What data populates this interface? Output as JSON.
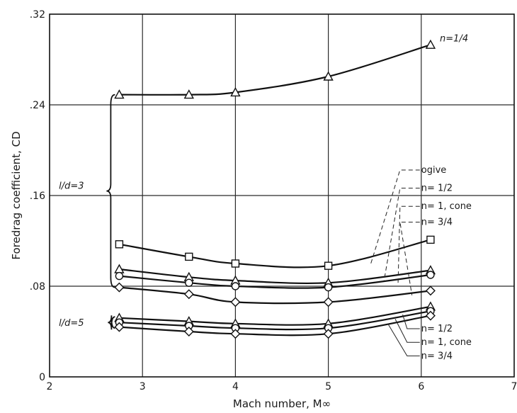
{
  "chart_data": {
    "type": "line",
    "xlabel": "Mach number, M∞",
    "ylabel": "Foredrag coefficient, CD",
    "xlim": [
      2,
      7
    ],
    "ylim": [
      0,
      0.32
    ],
    "x_ticks": [
      "2",
      "3",
      "4",
      "5",
      "6",
      "7"
    ],
    "y_ticks": [
      "0",
      ".08",
      ".16",
      ".24",
      ".32"
    ],
    "grid": true,
    "groups": [
      {
        "label": "l/d = 3"
      },
      {
        "label": "l/d = 5"
      }
    ],
    "series": [
      {
        "name": "n=1/4",
        "group": "l/d = 3",
        "marker": "triangle",
        "x": [
          2.75,
          3.5,
          4.0,
          5.0,
          6.1
        ],
        "y": [
          0.249,
          0.249,
          0.251,
          0.265,
          0.293
        ]
      },
      {
        "name": "ogive",
        "group": "l/d = 3",
        "marker": "square",
        "x": [
          2.75,
          3.5,
          4.0,
          5.0,
          6.1
        ],
        "y": [
          0.117,
          0.106,
          0.1,
          0.098,
          0.121
        ]
      },
      {
        "name": "n= 1/2",
        "group": "l/d = 3",
        "marker": "triangle",
        "x": [
          2.75,
          3.5,
          4.0,
          5.0,
          6.1
        ],
        "y": [
          0.095,
          0.088,
          0.085,
          0.083,
          0.094
        ]
      },
      {
        "name": "n = 1, cone",
        "group": "l/d = 3",
        "marker": "circle",
        "x": [
          2.75,
          3.5,
          4.0,
          5.0,
          6.1
        ],
        "y": [
          0.089,
          0.083,
          0.08,
          0.079,
          0.09
        ]
      },
      {
        "name": "n= 3/4",
        "group": "l/d = 3",
        "marker": "diamond",
        "x": [
          2.75,
          3.5,
          4.0,
          5.0,
          6.1
        ],
        "y": [
          0.079,
          0.073,
          0.066,
          0.066,
          0.076
        ]
      },
      {
        "name": "n= 1/2",
        "group": "l/d = 5",
        "marker": "triangle",
        "x": [
          2.75,
          3.5,
          4.0,
          5.0,
          6.1
        ],
        "y": [
          0.052,
          0.049,
          0.047,
          0.047,
          0.062
        ]
      },
      {
        "name": "n= 1, cone",
        "group": "l/d = 5",
        "marker": "circle",
        "x": [
          2.75,
          3.5,
          4.0,
          5.0,
          6.1
        ],
        "y": [
          0.048,
          0.045,
          0.043,
          0.043,
          0.058
        ]
      },
      {
        "name": "n= 3/4",
        "group": "l/d = 5",
        "marker": "diamond",
        "x": [
          2.75,
          3.5,
          4.0,
          5.0,
          6.1
        ],
        "y": [
          0.044,
          0.04,
          0.038,
          0.038,
          0.054
        ]
      }
    ],
    "annotations": {
      "n_quarter": "n=1/4",
      "ld3": "l/d=3",
      "ld5": "l/d=5",
      "upper_labels": [
        "ogive",
        "n= 1/2",
        "n= 1, cone",
        "n= 3/4"
      ],
      "lower_labels": [
        "n= 1/2",
        "n= 1, cone",
        "n= 3/4"
      ]
    }
  }
}
